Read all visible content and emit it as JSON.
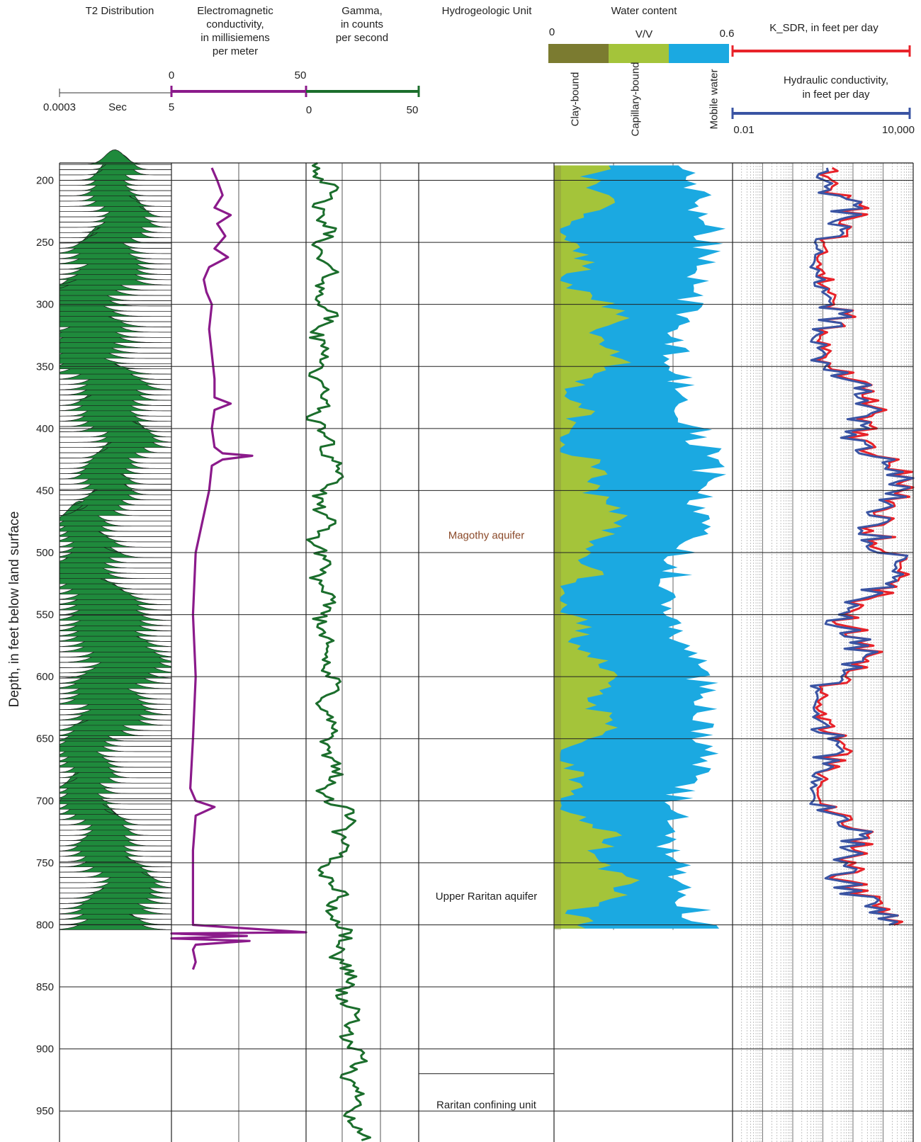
{
  "chart_data": {
    "type": "line",
    "ylabel": "Depth, in feet below land surface",
    "y_ticks": [
      "200",
      "250",
      "300",
      "350",
      "400",
      "450",
      "500",
      "550",
      "600",
      "650",
      "700",
      "750",
      "800",
      "850",
      "900",
      "950"
    ],
    "ylim": [
      186,
      975
    ],
    "y_reversed": true,
    "tracks": [
      {
        "id": "t2",
        "title": "T2 Distribution",
        "scale_left": "0.0003",
        "scale_unit": "Sec",
        "scale_right": "5",
        "data_depth_range": [
          186,
          804
        ],
        "color": "#1f8a3c"
      },
      {
        "id": "em",
        "title": "Electromagnetic conductivity, in millisiemens per meter",
        "title_lines": [
          "Electromagnetic",
          "conductivity,",
          "in millisiemens",
          "per meter"
        ],
        "scale_min": "0",
        "scale_max": "50",
        "xlim": [
          0,
          50
        ],
        "color": "#8b1a8b",
        "depth": [
          190,
          200,
          212,
          222,
          228,
          235,
          245,
          255,
          262,
          270,
          280,
          290,
          300,
          320,
          340,
          360,
          375,
          380,
          385,
          400,
          415,
          420,
          422,
          425,
          430,
          450,
          480,
          500,
          550,
          600,
          650,
          690,
          700,
          705,
          712,
          740,
          780,
          800,
          806,
          807,
          809,
          811,
          813,
          816,
          820,
          830,
          836
        ],
        "values": [
          15,
          17,
          19,
          16,
          22,
          17,
          20,
          16,
          21,
          14,
          12,
          13,
          15,
          14,
          15,
          16,
          16,
          22,
          16,
          15,
          16,
          19,
          30,
          19,
          15,
          14,
          11,
          9,
          8,
          9,
          8,
          7,
          9,
          16,
          9,
          8,
          8,
          8,
          50,
          0,
          28,
          0,
          29,
          9,
          8,
          9,
          8
        ]
      },
      {
        "id": "gamma",
        "title": "Gamma, in counts per second",
        "title_lines": [
          "Gamma,",
          "in counts",
          "per second"
        ],
        "scale_min": "0",
        "scale_max": "50",
        "xlim": [
          0,
          50
        ],
        "color": "#1b6e2c",
        "anchors": {
          "depth": [
            186,
            250,
            300,
            350,
            400,
            420,
            425,
            450,
            500,
            550,
            600,
            650,
            675,
            700,
            715,
            750,
            800,
            850,
            900,
            950,
            975
          ],
          "values": [
            8,
            7,
            8,
            6,
            6,
            8,
            18,
            7,
            6,
            8,
            10,
            9,
            12,
            9,
            20,
            10,
            14,
            18,
            20,
            22,
            23
          ]
        }
      },
      {
        "id": "hydro",
        "title": "Hydrogeologic Unit",
        "units": [
          {
            "label": "Magothy aquifer",
            "color": "#8b4a2a",
            "depth_mid": 486
          },
          {
            "label": "Upper Raritan aquifer",
            "color": "#222222",
            "depth_mid": 777
          },
          {
            "label": "Raritan confining unit",
            "color": "#222222",
            "depth_mid": 945,
            "top_line": 920
          }
        ]
      },
      {
        "id": "water",
        "title": "Water content",
        "scale_min": "0",
        "scale_unit": "V/V",
        "scale_max": "0.6",
        "xlim": [
          0,
          0.6
        ],
        "data_depth_range": [
          188,
          804
        ],
        "legend": [
          {
            "label": "Clay-bound",
            "color": "#7b7b30"
          },
          {
            "label": "Capillary-bound",
            "color": "#a4c43a"
          },
          {
            "label": "Mobile water",
            "color": "#1ba9e1"
          }
        ]
      },
      {
        "id": "k",
        "title": "K_SDR, in feet per day",
        "title2": "Hydraulic conductivity, in feet per day",
        "scale_min": "0.01",
        "scale_max": "10,000",
        "x_scale": "log",
        "xlim": [
          0.01,
          10000
        ],
        "series": [
          {
            "name": "K_SDR, in feet per day",
            "color": "#e8232a"
          },
          {
            "name": "Hydraulic conductivity, in feet per day",
            "color": "#3a54a3"
          }
        ],
        "data_depth_range": [
          190,
          802
        ]
      }
    ]
  }
}
